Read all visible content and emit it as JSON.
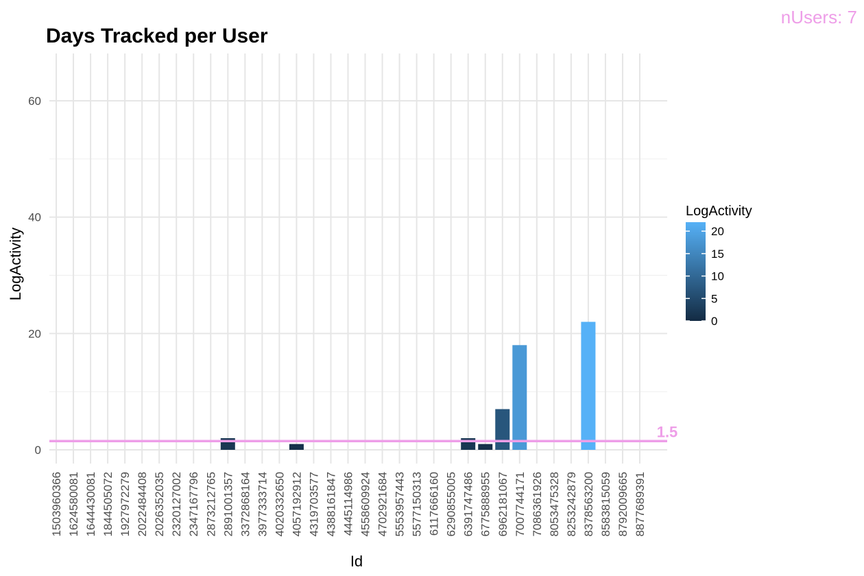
{
  "chart_data": {
    "type": "bar",
    "title": "Days Tracked per User",
    "xlabel": "Id",
    "ylabel": "LogActivity",
    "ylim": [
      -3,
      68
    ],
    "yticks": [
      0,
      20,
      40,
      60
    ],
    "grid": true,
    "categories": [
      "1503960366",
      "1624580081",
      "1644430081",
      "1844505072",
      "1927972279",
      "2022484408",
      "2026352035",
      "2320127002",
      "2347167796",
      "2873212765",
      "2891001357",
      "3372868164",
      "3977333714",
      "4020332650",
      "4057192912",
      "4319703577",
      "4388161847",
      "4445114986",
      "4558609924",
      "4702921684",
      "5553957443",
      "5577150313",
      "6117666160",
      "6290855005",
      "6391747486",
      "6775888955",
      "6962181067",
      "7007744171",
      "7086361926",
      "8053475328",
      "8253242879",
      "8378563200",
      "8583815059",
      "8792009665",
      "8877689391"
    ],
    "values": [
      0,
      0,
      0,
      0,
      0,
      0,
      0,
      0,
      0,
      0,
      2,
      0,
      0,
      0,
      1,
      0,
      0,
      0,
      0,
      0,
      0,
      0,
      0,
      0,
      2,
      1,
      7,
      18,
      0,
      0,
      0,
      22,
      0,
      0,
      0
    ],
    "legend": {
      "title": "LogActivity",
      "placement": "right",
      "ticks": [
        0,
        5,
        10,
        15,
        20
      ],
      "range": [
        0,
        22
      ],
      "colors": [
        "#132B43",
        "#56B1F7"
      ]
    },
    "reference_line": {
      "value": 1.5,
      "label": "1.5",
      "color": "#ee9ee8"
    },
    "annotation": {
      "text": "nUsers: 7",
      "color": "#ee9ee8"
    }
  }
}
